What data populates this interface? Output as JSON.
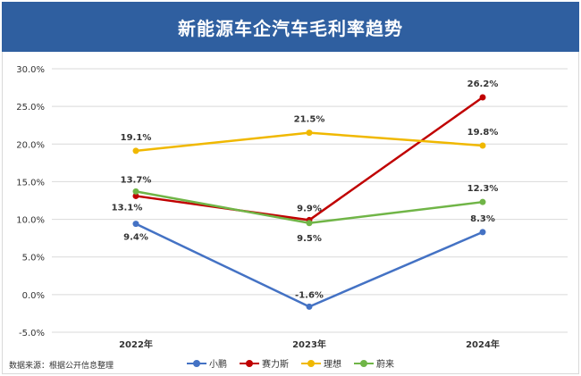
{
  "title": "新能源车企汽车毛利率趋势",
  "source_note": "数据来源：根据公开信息整理",
  "colors": {
    "header_bg": "#2f5fa0",
    "小鹏": "#4472c4",
    "赛力斯": "#c00000",
    "理想": "#f0b800",
    "蔚来": "#70b547",
    "grid": "#d9d9d9"
  },
  "chart_data": {
    "type": "line",
    "title": "新能源车企汽车毛利率趋势",
    "categories": [
      "2022年",
      "2023年",
      "2024年"
    ],
    "ylim": [
      -5.0,
      30.0
    ],
    "yticks": [
      "-5.0%",
      "0.0%",
      "5.0%",
      "10.0%",
      "15.0%",
      "20.0%",
      "25.0%",
      "30.0%"
    ],
    "grid": true,
    "legend_position": "bottom",
    "series": [
      {
        "name": "小鹏",
        "color": "#4472c4",
        "values": [
          9.4,
          -1.6,
          8.3
        ],
        "labels": [
          "9.4%",
          "-1.6%",
          "8.3%"
        ]
      },
      {
        "name": "赛力斯",
        "color": "#c00000",
        "values": [
          13.1,
          9.9,
          26.2
        ],
        "labels": [
          "13.1%",
          "9.9%",
          "26.2%"
        ]
      },
      {
        "name": "理想",
        "color": "#f0b800",
        "values": [
          19.1,
          21.5,
          19.8
        ],
        "labels": [
          "19.1%",
          "21.5%",
          "19.8%"
        ]
      },
      {
        "name": "蔚来",
        "color": "#70b547",
        "values": [
          13.7,
          9.5,
          12.3
        ],
        "labels": [
          "13.7%",
          "9.5%",
          "12.3%"
        ]
      }
    ]
  }
}
